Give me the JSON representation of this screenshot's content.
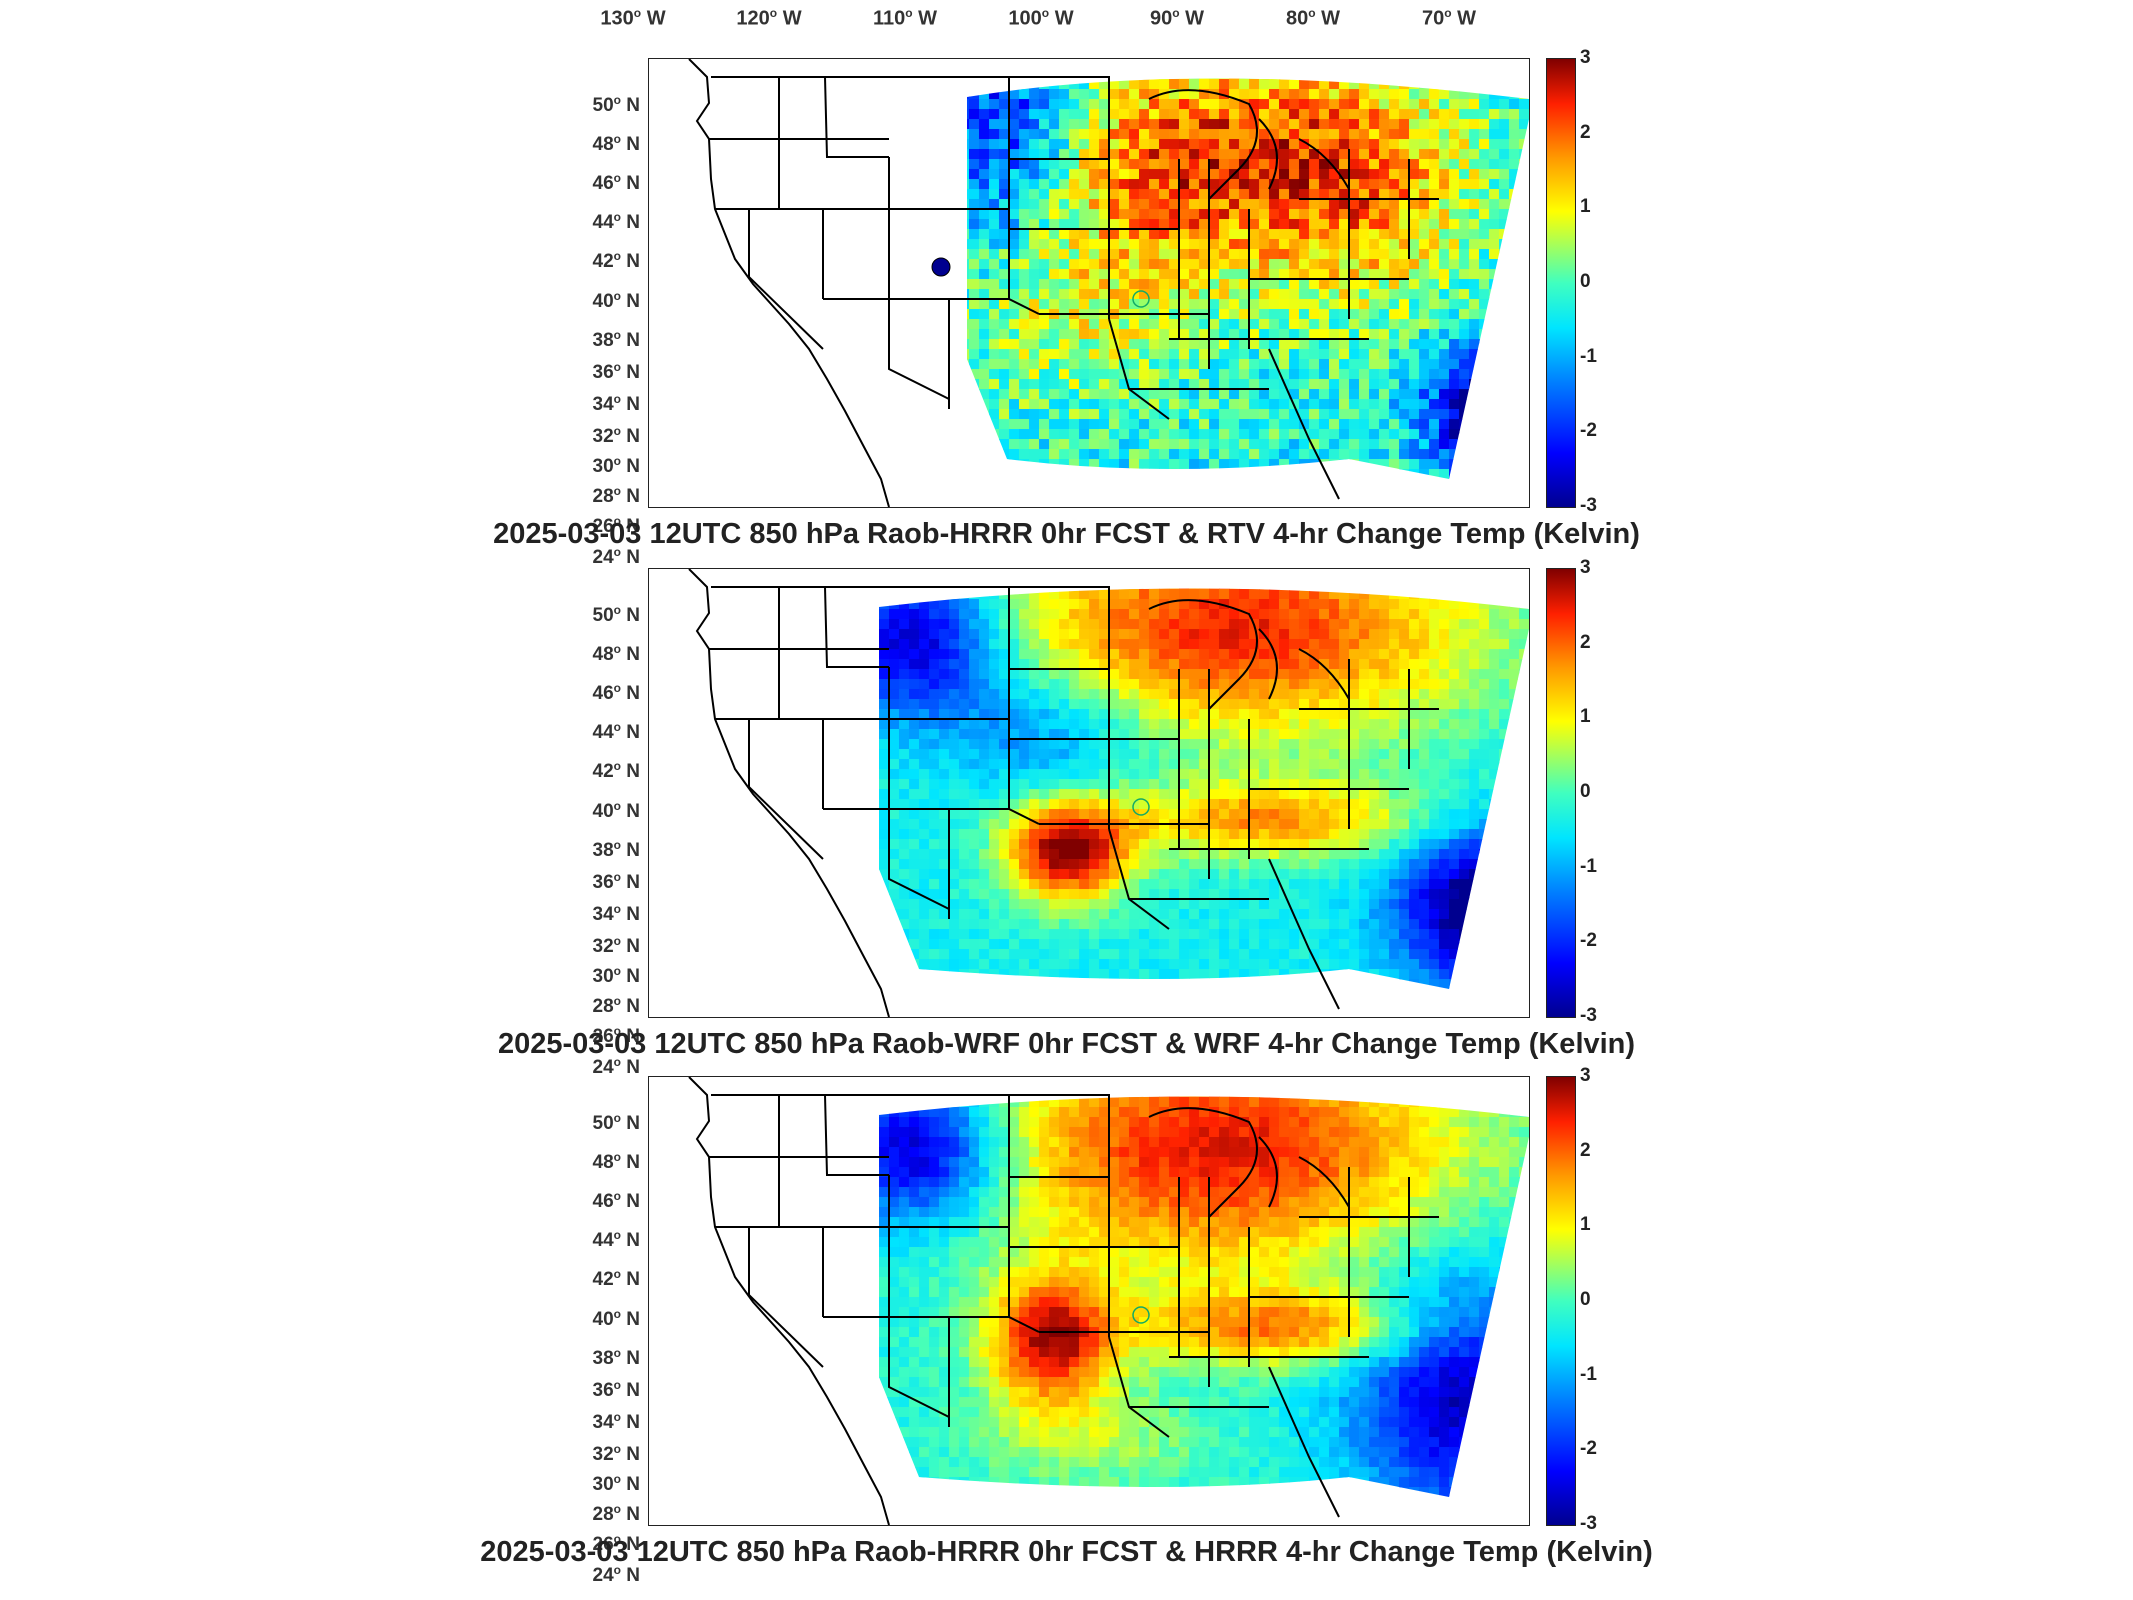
{
  "longitude_labels": [
    {
      "deg": "130",
      "hemi": "W"
    },
    {
      "deg": "120",
      "hemi": "W"
    },
    {
      "deg": "110",
      "hemi": "W"
    },
    {
      "deg": "100",
      "hemi": "W"
    },
    {
      "deg": "90",
      "hemi": "W"
    },
    {
      "deg": "80",
      "hemi": "W"
    },
    {
      "deg": "70",
      "hemi": "W"
    }
  ],
  "latitude_labels": [
    "50",
    "48",
    "46",
    "44",
    "42",
    "40",
    "38",
    "36",
    "34",
    "32",
    "30",
    "28",
    "26",
    "24"
  ],
  "lat_hemisphere": "N",
  "colorbar": {
    "ticks": [
      "3",
      "2",
      "1",
      "0",
      "-1",
      "-2",
      "-3"
    ],
    "range": [
      -3,
      3
    ],
    "colormap": "jet"
  },
  "panels": [
    {
      "title": "2025-03-03 12UTC 850 hPa Raob-HRRR 0hr FCST & RTV 4-hr Change Temp (Kelvin)"
    },
    {
      "title": "2025-03-03 12UTC 850 hPa Raob-WRF 0hr FCST & WRF 4-hr Change Temp (Kelvin)"
    },
    {
      "title": "2025-03-03 12UTC 850 hPa Raob-HRRR 0hr FCST & HRRR 4-hr Change Temp (Kelvin)"
    }
  ],
  "colors": {
    "deep_blue": "#00008f",
    "blue": "#0050ff",
    "cyan": "#00d0ff",
    "green": "#60ffa0",
    "yellow": "#ffff20",
    "orange": "#ff9900",
    "red": "#ff2000",
    "dark_red": "#900000"
  }
}
